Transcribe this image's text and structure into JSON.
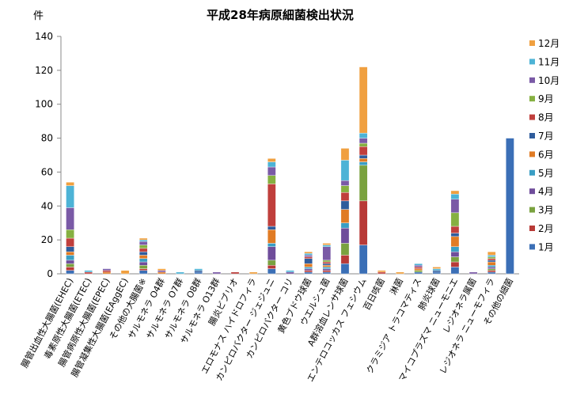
{
  "chart_data": {
    "type": "bar",
    "stacked": true,
    "title": "平成28年病原細菌検出状況",
    "ylabel": "件",
    "xlabel": "",
    "ylim": [
      0,
      140
    ],
    "yticks": [
      0,
      20,
      40,
      60,
      80,
      100,
      120,
      140
    ],
    "grid": false,
    "legend_position": "right",
    "categories": [
      "腸管出血性大腸菌(EHEC)",
      "毒素原性大腸菌(ETEC)",
      "腸管病原性大腸菌(EPEC)",
      "腸管凝集性大腸菌(EAggEC)",
      "その他の大腸菌※",
      "サルモネラ O4群",
      "サルモネラ O7群",
      "サルモネラ O8群",
      "サルモネラ O13群",
      "腸炎ビブリオ",
      "エロモナス ハイドロフィラ",
      "カンピロバクター ジェジュニ",
      "カンピロバクター コリ",
      "黄色ブドウ球菌",
      "ウエルシュ菌",
      "A群溶血レンサ球菌",
      "エンテロコッカス フェシウム",
      "百日咳菌",
      "淋菌",
      "クラミジア トラコマティス",
      "肺炎球菌",
      "マイコプラズマ ニューモニエ",
      "レジオネラ属菌",
      "レジオネラ ニューモフィラ",
      "その他の細菌"
    ],
    "series": [
      {
        "name": "1月",
        "color": "#3b6fb6",
        "values": [
          2,
          0,
          0,
          0,
          2,
          0,
          0,
          1,
          0,
          0,
          0,
          3,
          0,
          1,
          1,
          6,
          17,
          0,
          0,
          1,
          1,
          4,
          0,
          1,
          80
        ]
      },
      {
        "name": "2月",
        "color": "#b83a37",
        "values": [
          2,
          0,
          0,
          0,
          1,
          0,
          0,
          0,
          0,
          1,
          0,
          2,
          0,
          1,
          1,
          5,
          26,
          0,
          0,
          0,
          0,
          3,
          0,
          1,
          0
        ]
      },
      {
        "name": "3月",
        "color": "#7aa23f",
        "values": [
          2,
          0,
          0,
          0,
          2,
          0,
          0,
          0,
          0,
          0,
          0,
          3,
          0,
          0,
          0,
          7,
          21,
          0,
          0,
          1,
          0,
          3,
          0,
          1,
          0
        ]
      },
      {
        "name": "4月",
        "color": "#6f4d9b",
        "values": [
          2,
          0,
          0,
          0,
          2,
          0,
          0,
          0,
          0,
          0,
          0,
          8,
          1,
          1,
          1,
          9,
          0,
          0,
          0,
          0,
          0,
          3,
          0,
          1,
          0
        ]
      },
      {
        "name": "5月",
        "color": "#3a9ec4",
        "values": [
          3,
          0,
          0,
          0,
          2,
          0,
          0,
          0,
          0,
          0,
          0,
          2,
          0,
          1,
          1,
          3,
          2,
          0,
          0,
          0,
          0,
          3,
          0,
          1,
          0
        ]
      },
      {
        "name": "6月",
        "color": "#e07b24",
        "values": [
          2,
          0,
          1,
          0,
          2,
          1,
          0,
          0,
          0,
          0,
          0,
          8,
          0,
          2,
          1,
          8,
          2,
          0,
          0,
          1,
          0,
          6,
          0,
          2,
          0
        ]
      },
      {
        "name": "7月",
        "color": "#2f5c9c",
        "values": [
          3,
          0,
          0,
          0,
          2,
          0,
          0,
          1,
          0,
          0,
          0,
          2,
          0,
          3,
          1,
          5,
          2,
          0,
          0,
          0,
          1,
          2,
          0,
          1,
          0
        ]
      },
      {
        "name": "8月",
        "color": "#c03f3c",
        "values": [
          5,
          1,
          1,
          0,
          2,
          0,
          0,
          0,
          0,
          0,
          0,
          25,
          0,
          1,
          1,
          5,
          5,
          1,
          0,
          1,
          0,
          4,
          0,
          1,
          0
        ]
      },
      {
        "name": "9月",
        "color": "#86b041",
        "values": [
          5,
          0,
          0,
          0,
          2,
          0,
          0,
          0,
          0,
          0,
          0,
          5,
          0,
          0,
          1,
          4,
          2,
          0,
          0,
          0,
          0,
          8,
          0,
          1,
          0
        ]
      },
      {
        "name": "10月",
        "color": "#7a5aa6",
        "values": [
          13,
          0,
          1,
          0,
          2,
          1,
          0,
          0,
          1,
          0,
          0,
          5,
          0,
          1,
          8,
          3,
          3,
          0,
          0,
          1,
          0,
          8,
          1,
          0,
          0
        ]
      },
      {
        "name": "11月",
        "color": "#4db3d6",
        "values": [
          13,
          1,
          0,
          0,
          1,
          0,
          1,
          1,
          0,
          0,
          0,
          3,
          1,
          1,
          1,
          12,
          3,
          0,
          0,
          1,
          1,
          3,
          0,
          1,
          0
        ]
      },
      {
        "name": "12月",
        "color": "#f0a040",
        "values": [
          2,
          0,
          0,
          2,
          1,
          1,
          0,
          0,
          0,
          0,
          1,
          2,
          0,
          1,
          1,
          7,
          39,
          1,
          1,
          0,
          1,
          2,
          0,
          2,
          0
        ]
      }
    ]
  }
}
